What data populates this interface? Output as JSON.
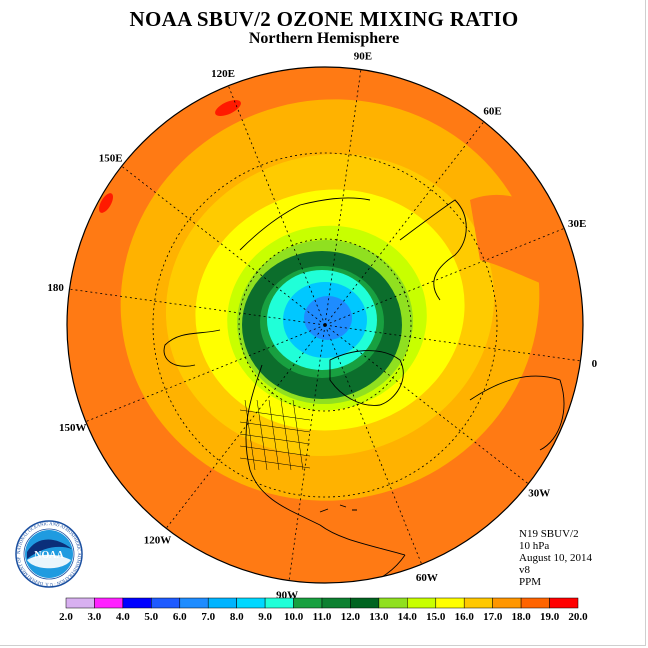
{
  "header": {
    "title": "NOAA SBUV/2 OZONE MIXING RATIO",
    "subtitle": "Northern Hemisphere"
  },
  "info": {
    "lines": [
      "N19 SBUV/2",
      "10 hPa",
      "August 10, 2014",
      "v8",
      "PPM"
    ]
  },
  "map": {
    "projection": "north-polar-stereographic",
    "longitude_labels": [
      {
        "text": "90E",
        "lon": 90
      },
      {
        "text": "60E",
        "lon": 60
      },
      {
        "text": "30E",
        "lon": 30
      },
      {
        "text": "0",
        "lon": 0
      },
      {
        "text": "30W",
        "lon": -30
      },
      {
        "text": "60W",
        "lon": -60
      },
      {
        "text": "90W",
        "lon": -90
      },
      {
        "text": "120W",
        "lon": -120
      },
      {
        "text": "150W",
        "lon": -150
      },
      {
        "text": "180",
        "lon": 180
      },
      {
        "text": "150E",
        "lon": 150
      },
      {
        "text": "120E",
        "lon": 120
      }
    ],
    "latitude_circles": [
      30,
      60
    ]
  },
  "colorbar": {
    "ticks": [
      "2.0",
      "3.0",
      "4.0",
      "5.0",
      "6.0",
      "7.0",
      "8.0",
      "9.0",
      "10.0",
      "11.0",
      "12.0",
      "13.0",
      "14.0",
      "15.0",
      "16.0",
      "17.0",
      "18.0",
      "19.0",
      "20.0"
    ],
    "colors": [
      "#a778d8",
      "#d8b0f0",
      "#ff20ff",
      "#0000ff",
      "#1e5aff",
      "#1e8cff",
      "#00b4ff",
      "#00d8ff",
      "#20ffd8",
      "#18a040",
      "#0c8030",
      "#006420",
      "#90e020",
      "#c8ff00",
      "#ffff00",
      "#ffc800",
      "#ff9600",
      "#ff6400",
      "#ff0000",
      "#b40000",
      "#8a5030"
    ]
  },
  "logo": {
    "text": "NOAA",
    "ring_text": "NATIONAL OCEANIC AND ATMOSPHERIC ADMINISTRATION · U.S. DEPARTMENT OF COMMERCE"
  },
  "colors": {
    "outer": "#ff7a14",
    "orange_light": "#ffb200",
    "amber": "#ffcb00",
    "yellow": "#ffff00",
    "yellow_green": "#c8ff00",
    "light_green": "#90e020",
    "green": "#18a040",
    "dark_green": "#0c6e2c",
    "cyan": "#20ffd8",
    "sky": "#00c8ff",
    "blue": "#1e8cff",
    "red": "#ff1a00"
  }
}
